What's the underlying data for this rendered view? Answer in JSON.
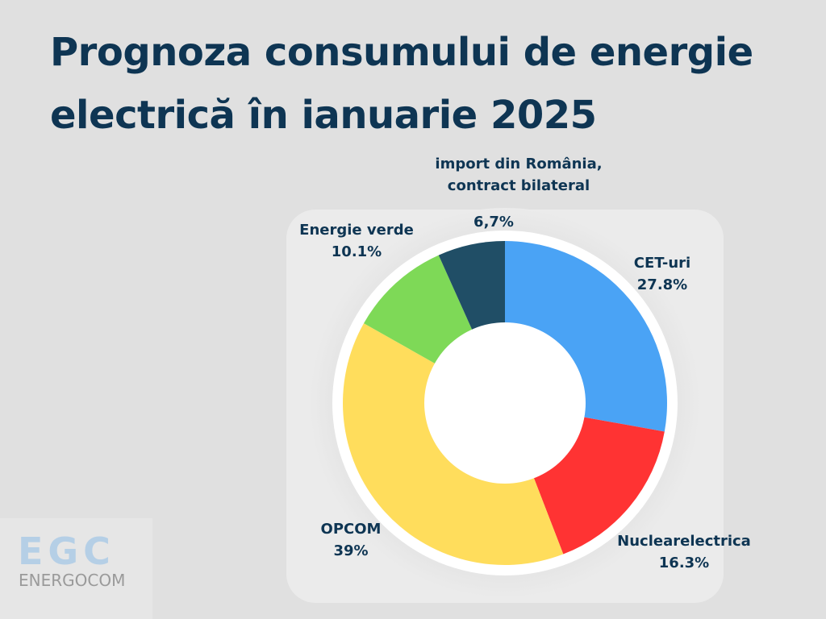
{
  "chart_data": {
    "type": "pie",
    "title": "Prognoza consumului de energie electrică în ianuarie 2025",
    "title_lines": [
      "Prognoza consumului de energie",
      "electrică în ianuarie 2025"
    ],
    "donut": true,
    "start": "top, clockwise",
    "slices": [
      {
        "name": "CET-uri",
        "value": 27.8,
        "label": "27.8%",
        "color": "#4aa3f5"
      },
      {
        "name": "Nuclearelectrica",
        "value": 16.3,
        "label": "16.3%",
        "color": "#ff3333"
      },
      {
        "name": "OPCOM",
        "value": 39,
        "label": "39%",
        "color": "#ffdd5c"
      },
      {
        "name": "Energie verde",
        "value": 10.1,
        "label": "10.1%",
        "color": "#7ed957"
      },
      {
        "name": "import din România, contract bilateral",
        "name_lines": [
          "import din România,",
          "contract bilateral"
        ],
        "value": 6.7,
        "label": "6,7%",
        "color": "#204e66"
      }
    ]
  },
  "logo": {
    "mark": "EGC",
    "name": "ENERGOCOM"
  }
}
